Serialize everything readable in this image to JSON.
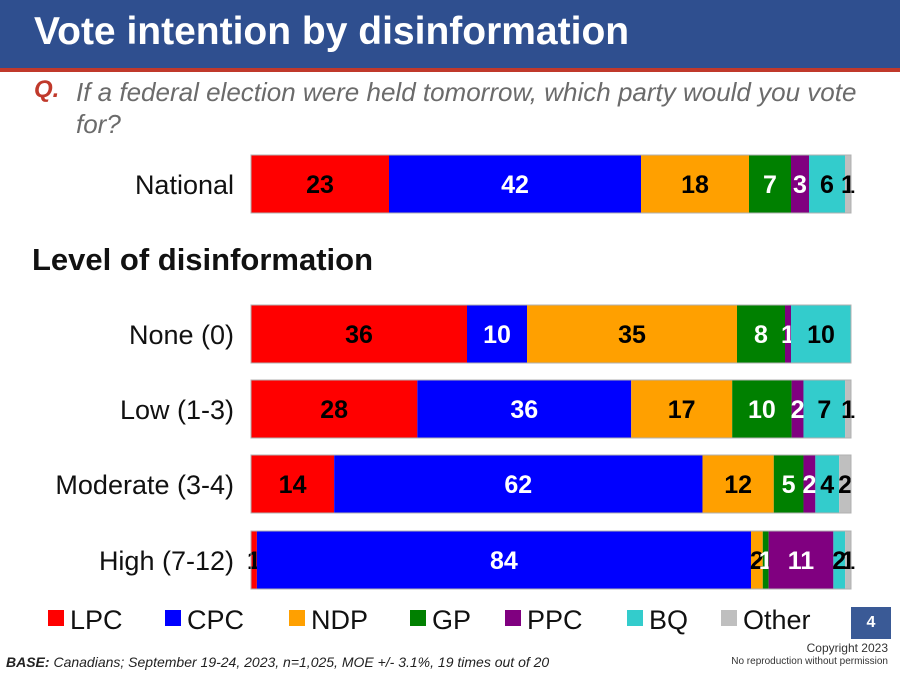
{
  "header": {
    "title": "Vote intention by disinformation",
    "question_label": "Q.",
    "question_text": "If a federal election were held tomorrow, which party would you vote for?"
  },
  "section_heading": "Level of disinformation",
  "page_number": "4",
  "footer": {
    "base_label": "BASE:",
    "base_text": " Canadians; September 19-24, 2023, n=1,025,  MOE +/- 3.1%, 19 times out of 20",
    "copyright": "Copyright 2023",
    "copyright_note": "No reproduction without permission"
  },
  "chart_data": {
    "type": "bar",
    "orientation": "horizontal",
    "stacked": true,
    "categories": [
      "National",
      "None (0)",
      "Low (1-3)",
      "Moderate (3-4)",
      "High (7-12)"
    ],
    "series": [
      {
        "name": "LPC",
        "color": "#ff0000",
        "values": [
          23,
          36,
          28,
          14,
          1
        ]
      },
      {
        "name": "CPC",
        "color": "#0000ff",
        "values": [
          42,
          10,
          36,
          62,
          84
        ]
      },
      {
        "name": "NDP",
        "color": "#ffa000",
        "values": [
          18,
          35,
          17,
          12,
          2
        ]
      },
      {
        "name": "GP",
        "color": "#008000",
        "values": [
          7,
          8,
          10,
          5,
          1
        ]
      },
      {
        "name": "PPC",
        "color": "#800080",
        "values": [
          3,
          1,
          2,
          2,
          11
        ]
      },
      {
        "name": "BQ",
        "color": "#33cccc",
        "values": [
          6,
          10,
          7,
          4,
          2
        ]
      },
      {
        "name": "Other",
        "color": "#bfbfbf",
        "values": [
          1,
          0,
          1,
          2,
          1
        ]
      }
    ],
    "label_colors": {
      "LPC": "#000000",
      "CPC": "#ffffff",
      "NDP": "#000000",
      "GP": "#ffffff",
      "PPC": "#ffffff",
      "BQ": "#000000",
      "Other": "#000000"
    },
    "legend_position": "bottom",
    "grid": false
  }
}
